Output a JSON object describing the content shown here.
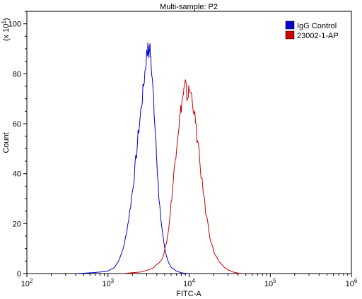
{
  "chart_data": {
    "type": "line",
    "title": "Multi-sample: P2",
    "xlabel": "FITC-A",
    "ylabel": "Count",
    "y_multiplier_label": "(x 10",
    "y_multiplier_exp": "1",
    "x_scale": "log",
    "xlim": [
      100,
      1000000
    ],
    "ylim": [
      0,
      105
    ],
    "x_ticks": [
      {
        "base": "10",
        "exp": "2"
      },
      {
        "base": "10",
        "exp": "3"
      },
      {
        "base": "10",
        "exp": "4"
      },
      {
        "base": "10",
        "exp": "5"
      },
      {
        "base": "10",
        "exp": "6"
      }
    ],
    "y_ticks": [
      "0",
      "20",
      "40",
      "60",
      "80",
      "100"
    ],
    "grid": false,
    "legend_position": "top-right",
    "series": [
      {
        "name": "IgG Control",
        "color": "#0000cc",
        "x": [
          400,
          600,
          800,
          1000,
          1200,
          1400,
          1600,
          1800,
          2000,
          2200,
          2400,
          2600,
          2800,
          3000,
          3100,
          3200,
          3300,
          3400,
          3600,
          3800,
          4000,
          4200,
          4500,
          5000,
          5500,
          6000,
          7000,
          8000,
          10000
        ],
        "y": [
          0,
          0.3,
          0.6,
          1,
          2.5,
          6,
          12,
          22,
          33,
          45,
          58,
          68,
          78,
          88,
          90,
          88,
          91,
          86,
          72,
          58,
          45,
          33,
          20,
          10,
          5,
          2.5,
          1,
          0.3,
          0
        ]
      },
      {
        "name": "23002-1-AP",
        "color": "#cc0000",
        "x": [
          1500,
          2500,
          3500,
          4500,
          5000,
          5500,
          6000,
          6500,
          7000,
          7500,
          8000,
          8500,
          9000,
          9500,
          10000,
          11000,
          12000,
          13000,
          14000,
          16000,
          18000,
          20000,
          23000,
          26000,
          30000,
          35000,
          40000,
          45000
        ],
        "y": [
          0,
          0.6,
          2,
          5,
          9,
          16,
          28,
          40,
          52,
          60,
          67,
          72,
          76,
          70,
          74,
          70,
          60,
          50,
          40,
          25,
          15,
          9,
          5,
          3,
          1.5,
          0.6,
          0.2,
          0
        ]
      }
    ]
  }
}
